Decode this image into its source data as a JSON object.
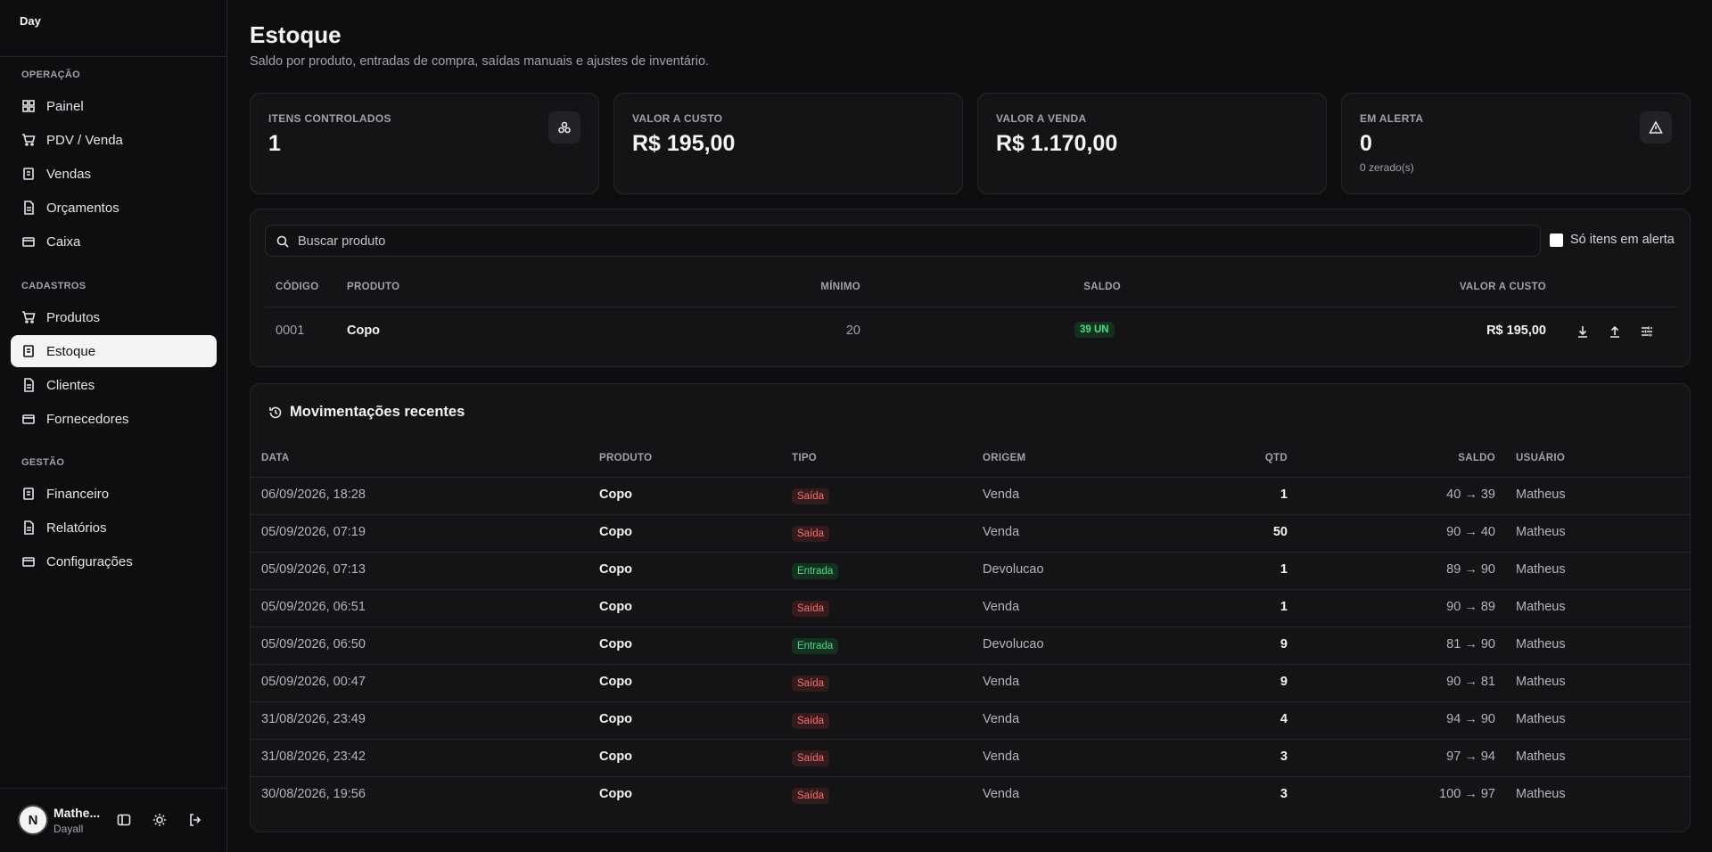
{
  "sidebar": {
    "logo": "Day",
    "sections": [
      {
        "title": "OPERAÇÃO",
        "items": [
          "Painel",
          "PDV / Venda",
          "Vendas",
          "Orçamentos",
          "Caixa"
        ]
      },
      {
        "title": "CADASTROS",
        "items": [
          "Produtos",
          "Estoque",
          "Clientes",
          "Fornecedores"
        ]
      },
      {
        "title": "GESTÃO",
        "items": [
          "Financeiro",
          "Relatórios",
          "Configurações"
        ]
      }
    ],
    "user": {
      "initial": "N",
      "name": "Mathe...",
      "org": "Dayall"
    }
  },
  "header": {
    "title": "Estoque",
    "subtitle": "Saldo por produto, entradas de compra, saídas manuais e ajustes de inventário."
  },
  "stats": [
    {
      "label": "ITENS CONTROLADOS",
      "value": "1"
    },
    {
      "label": "VALOR A CUSTO",
      "value": "R$ 195,00"
    },
    {
      "label": "VALOR A VENDA",
      "value": "R$ 1.170,00"
    },
    {
      "label": "EM ALERTA",
      "value": "0",
      "note": "0 zerado(s)"
    }
  ],
  "stock": {
    "search_placeholder": "Buscar produto",
    "filter": "Só itens em alerta",
    "columns": [
      "CÓDIGO",
      "PRODUTO",
      "MÍNIMO",
      "SALDO",
      "VALOR A CUSTO"
    ],
    "rows": [
      [
        "0001",
        "Copo",
        "20",
        "39 UN",
        "R$ 195,00"
      ]
    ]
  },
  "movements": {
    "title": "Movimentações recentes",
    "columns": [
      "DATA",
      "PRODUTO",
      "TIPO",
      "ORIGEM",
      "QTD",
      "SALDO",
      "USUÁRIO"
    ],
    "rows": [
      [
        "06/09/2026, 18:28",
        "Copo",
        "Saída",
        "Venda",
        "1",
        "40 → 39",
        "Matheus"
      ],
      [
        "05/09/2026, 07:19",
        "Copo",
        "Saída",
        "Venda",
        "50",
        "90 → 40",
        "Matheus"
      ],
      [
        "05/09/2026, 07:13",
        "Copo",
        "Entrada",
        "Devolucao",
        "1",
        "89 → 90",
        "Matheus"
      ],
      [
        "05/09/2026, 06:51",
        "Copo",
        "Saída",
        "Venda",
        "1",
        "90 → 89",
        "Matheus"
      ],
      [
        "05/09/2026, 06:50",
        "Copo",
        "Entrada",
        "Devolucao",
        "9",
        "81 → 90",
        "Matheus"
      ],
      [
        "05/09/2026, 00:47",
        "Copo",
        "Saída",
        "Venda",
        "9",
        "90 → 81",
        "Matheus"
      ],
      [
        "31/08/2026, 23:49",
        "Copo",
        "Saída",
        "Venda",
        "4",
        "94 → 90",
        "Matheus"
      ],
      [
        "31/08/2026, 23:42",
        "Copo",
        "Saída",
        "Venda",
        "3",
        "97 → 94",
        "Matheus"
      ],
      [
        "30/08/2026, 19:56",
        "Copo",
        "Saída",
        "Venda",
        "3",
        "100 → 97",
        "Matheus"
      ]
    ]
  }
}
